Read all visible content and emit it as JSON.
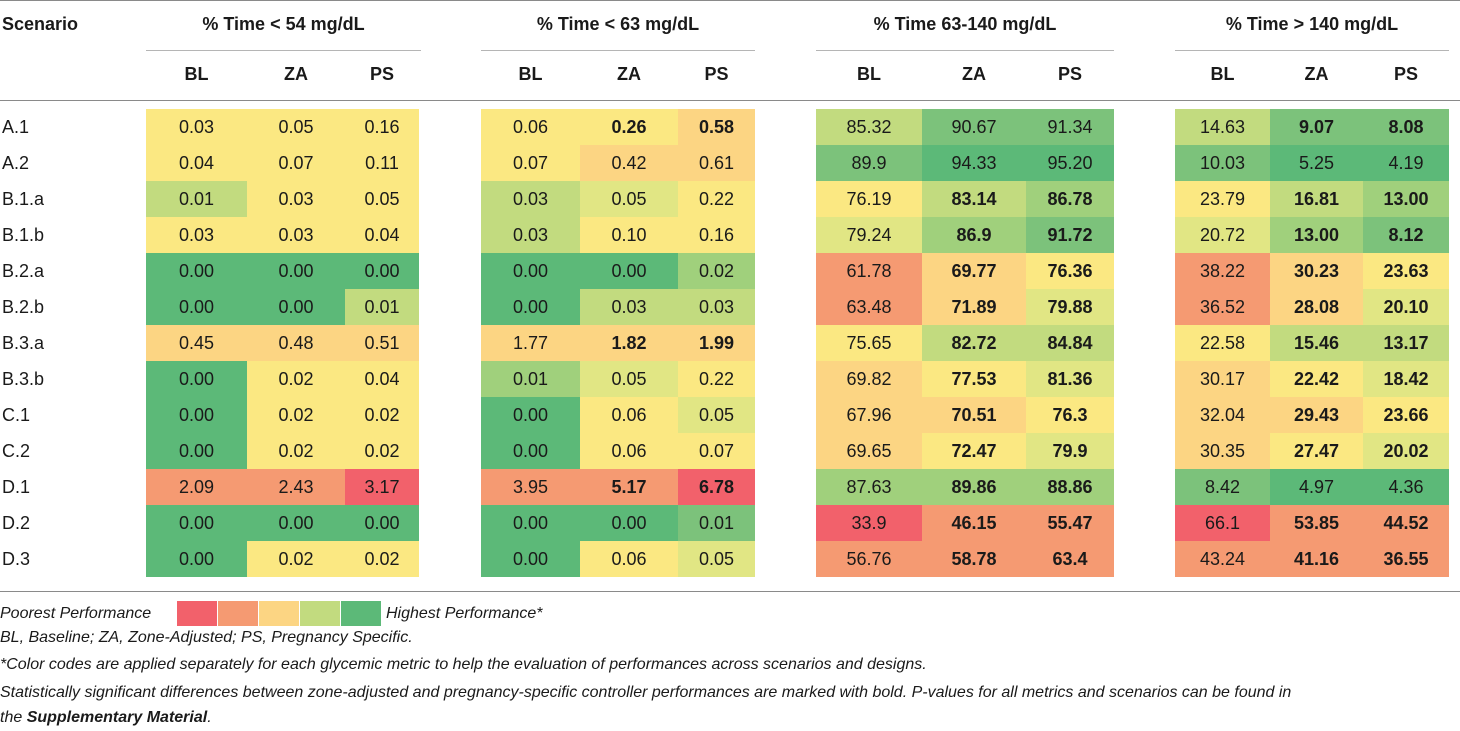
{
  "header": {
    "scenario_label": "Scenario",
    "groups": [
      {
        "title": "% Time < 54 mg/dL",
        "subs": [
          "BL",
          "ZA",
          "PS"
        ]
      },
      {
        "title": "% Time < 63 mg/dL",
        "subs": [
          "BL",
          "ZA",
          "PS"
        ]
      },
      {
        "title": "% Time 63-140 mg/dL",
        "subs": [
          "BL",
          "ZA",
          "PS"
        ]
      },
      {
        "title": "% Time > 140 mg/dL",
        "subs": [
          "BL",
          "ZA",
          "PS"
        ]
      }
    ]
  },
  "colors": {
    "c1": "#f2616b",
    "c2": "#f59a72",
    "c3": "#fcd583",
    "c4": "#fbe882",
    "c5": "#e1e684",
    "c6": "#c2db7f",
    "c7": "#a0d07c",
    "c8": "#7cc27b",
    "c9": "#5cb978"
  },
  "rows": [
    {
      "label": "A.1",
      "cells": [
        {
          "v": "0.03",
          "c": "c4"
        },
        {
          "v": "0.05",
          "c": "c4"
        },
        {
          "v": "0.16",
          "c": "c4"
        },
        {
          "v": "0.06",
          "c": "c4"
        },
        {
          "v": "0.26",
          "c": "c4",
          "b": true
        },
        {
          "v": "0.58",
          "c": "c3",
          "b": true
        },
        {
          "v": "85.32",
          "c": "c6"
        },
        {
          "v": "90.67",
          "c": "c8"
        },
        {
          "v": "91.34",
          "c": "c8"
        },
        {
          "v": "14.63",
          "c": "c6"
        },
        {
          "v": "9.07",
          "c": "c8",
          "b": true
        },
        {
          "v": "8.08",
          "c": "c8",
          "b": true
        }
      ]
    },
    {
      "label": "A.2",
      "cells": [
        {
          "v": "0.04",
          "c": "c4"
        },
        {
          "v": "0.07",
          "c": "c4"
        },
        {
          "v": "0.11",
          "c": "c4"
        },
        {
          "v": "0.07",
          "c": "c4"
        },
        {
          "v": "0.42",
          "c": "c3"
        },
        {
          "v": "0.61",
          "c": "c3"
        },
        {
          "v": "89.9",
          "c": "c8"
        },
        {
          "v": "94.33",
          "c": "c9"
        },
        {
          "v": "95.20",
          "c": "c9"
        },
        {
          "v": "10.03",
          "c": "c8"
        },
        {
          "v": "5.25",
          "c": "c9"
        },
        {
          "v": "4.19",
          "c": "c9"
        }
      ]
    },
    {
      "label": "B.1.a",
      "cells": [
        {
          "v": "0.01",
          "c": "c6"
        },
        {
          "v": "0.03",
          "c": "c4"
        },
        {
          "v": "0.05",
          "c": "c4"
        },
        {
          "v": "0.03",
          "c": "c6"
        },
        {
          "v": "0.05",
          "c": "c5"
        },
        {
          "v": "0.22",
          "c": "c4"
        },
        {
          "v": "76.19",
          "c": "c4"
        },
        {
          "v": "83.14",
          "c": "c6",
          "b": true
        },
        {
          "v": "86.78",
          "c": "c7",
          "b": true
        },
        {
          "v": "23.79",
          "c": "c4"
        },
        {
          "v": "16.81",
          "c": "c6",
          "b": true
        },
        {
          "v": "13.00",
          "c": "c7",
          "b": true
        }
      ]
    },
    {
      "label": "B.1.b",
      "cells": [
        {
          "v": "0.03",
          "c": "c4"
        },
        {
          "v": "0.03",
          "c": "c4"
        },
        {
          "v": "0.04",
          "c": "c4"
        },
        {
          "v": "0.03",
          "c": "c6"
        },
        {
          "v": "0.10",
          "c": "c4"
        },
        {
          "v": "0.16",
          "c": "c4"
        },
        {
          "v": "79.24",
          "c": "c5"
        },
        {
          "v": "86.9",
          "c": "c7",
          "b": true
        },
        {
          "v": "91.72",
          "c": "c8",
          "b": true
        },
        {
          "v": "20.72",
          "c": "c5"
        },
        {
          "v": "13.00",
          "c": "c7",
          "b": true
        },
        {
          "v": "8.12",
          "c": "c8",
          "b": true
        }
      ]
    },
    {
      "label": "B.2.a",
      "cells": [
        {
          "v": "0.00",
          "c": "c9"
        },
        {
          "v": "0.00",
          "c": "c9"
        },
        {
          "v": "0.00",
          "c": "c9"
        },
        {
          "v": "0.00",
          "c": "c9"
        },
        {
          "v": "0.00",
          "c": "c9"
        },
        {
          "v": "0.02",
          "c": "c7"
        },
        {
          "v": "61.78",
          "c": "c2"
        },
        {
          "v": "69.77",
          "c": "c3",
          "b": true
        },
        {
          "v": "76.36",
          "c": "c4",
          "b": true
        },
        {
          "v": "38.22",
          "c": "c2"
        },
        {
          "v": "30.23",
          "c": "c3",
          "b": true
        },
        {
          "v": "23.63",
          "c": "c4",
          "b": true
        }
      ]
    },
    {
      "label": "B.2.b",
      "cells": [
        {
          "v": "0.00",
          "c": "c9"
        },
        {
          "v": "0.00",
          "c": "c9"
        },
        {
          "v": "0.01",
          "c": "c6"
        },
        {
          "v": "0.00",
          "c": "c9"
        },
        {
          "v": "0.03",
          "c": "c6"
        },
        {
          "v": "0.03",
          "c": "c6"
        },
        {
          "v": "63.48",
          "c": "c2"
        },
        {
          "v": "71.89",
          "c": "c3",
          "b": true
        },
        {
          "v": "79.88",
          "c": "c5",
          "b": true
        },
        {
          "v": "36.52",
          "c": "c2"
        },
        {
          "v": "28.08",
          "c": "c3",
          "b": true
        },
        {
          "v": "20.10",
          "c": "c5",
          "b": true
        }
      ]
    },
    {
      "label": "B.3.a",
      "cells": [
        {
          "v": "0.45",
          "c": "c3"
        },
        {
          "v": "0.48",
          "c": "c3"
        },
        {
          "v": "0.51",
          "c": "c3"
        },
        {
          "v": "1.77",
          "c": "c3"
        },
        {
          "v": "1.82",
          "c": "c3",
          "b": true
        },
        {
          "v": "1.99",
          "c": "c3",
          "b": true
        },
        {
          "v": "75.65",
          "c": "c4"
        },
        {
          "v": "82.72",
          "c": "c6",
          "b": true
        },
        {
          "v": "84.84",
          "c": "c6",
          "b": true
        },
        {
          "v": "22.58",
          "c": "c4"
        },
        {
          "v": "15.46",
          "c": "c6",
          "b": true
        },
        {
          "v": "13.17",
          "c": "c6",
          "b": true
        }
      ]
    },
    {
      "label": "B.3.b",
      "cells": [
        {
          "v": "0.00",
          "c": "c9"
        },
        {
          "v": "0.02",
          "c": "c4"
        },
        {
          "v": "0.04",
          "c": "c4"
        },
        {
          "v": "0.01",
          "c": "c7"
        },
        {
          "v": "0.05",
          "c": "c5"
        },
        {
          "v": "0.22",
          "c": "c4"
        },
        {
          "v": "69.82",
          "c": "c3"
        },
        {
          "v": "77.53",
          "c": "c4",
          "b": true
        },
        {
          "v": "81.36",
          "c": "c5",
          "b": true
        },
        {
          "v": "30.17",
          "c": "c3"
        },
        {
          "v": "22.42",
          "c": "c4",
          "b": true
        },
        {
          "v": "18.42",
          "c": "c5",
          "b": true
        }
      ]
    },
    {
      "label": "C.1",
      "cells": [
        {
          "v": "0.00",
          "c": "c9"
        },
        {
          "v": "0.02",
          "c": "c4"
        },
        {
          "v": "0.02",
          "c": "c4"
        },
        {
          "v": "0.00",
          "c": "c9"
        },
        {
          "v": "0.06",
          "c": "c4"
        },
        {
          "v": "0.05",
          "c": "c5"
        },
        {
          "v": "67.96",
          "c": "c3"
        },
        {
          "v": "70.51",
          "c": "c3",
          "b": true
        },
        {
          "v": "76.3",
          "c": "c4",
          "b": true
        },
        {
          "v": "32.04",
          "c": "c3"
        },
        {
          "v": "29.43",
          "c": "c3",
          "b": true
        },
        {
          "v": "23.66",
          "c": "c4",
          "b": true
        }
      ]
    },
    {
      "label": "C.2",
      "cells": [
        {
          "v": "0.00",
          "c": "c9"
        },
        {
          "v": "0.02",
          "c": "c4"
        },
        {
          "v": "0.02",
          "c": "c4"
        },
        {
          "v": "0.00",
          "c": "c9"
        },
        {
          "v": "0.06",
          "c": "c4"
        },
        {
          "v": "0.07",
          "c": "c4"
        },
        {
          "v": "69.65",
          "c": "c3"
        },
        {
          "v": "72.47",
          "c": "c4",
          "b": true
        },
        {
          "v": "79.9",
          "c": "c5",
          "b": true
        },
        {
          "v": "30.35",
          "c": "c3"
        },
        {
          "v": "27.47",
          "c": "c4",
          "b": true
        },
        {
          "v": "20.02",
          "c": "c5",
          "b": true
        }
      ]
    },
    {
      "label": "D.1",
      "cells": [
        {
          "v": "2.09",
          "c": "c2"
        },
        {
          "v": "2.43",
          "c": "c2"
        },
        {
          "v": "3.17",
          "c": "c1"
        },
        {
          "v": "3.95",
          "c": "c2"
        },
        {
          "v": "5.17",
          "c": "c2",
          "b": true
        },
        {
          "v": "6.78",
          "c": "c1",
          "b": true
        },
        {
          "v": "87.63",
          "c": "c7"
        },
        {
          "v": "89.86",
          "c": "c7",
          "b": true
        },
        {
          "v": "88.86",
          "c": "c7",
          "b": true
        },
        {
          "v": "8.42",
          "c": "c8"
        },
        {
          "v": "4.97",
          "c": "c9"
        },
        {
          "v": "4.36",
          "c": "c9"
        }
      ]
    },
    {
      "label": "D.2",
      "cells": [
        {
          "v": "0.00",
          "c": "c9"
        },
        {
          "v": "0.00",
          "c": "c9"
        },
        {
          "v": "0.00",
          "c": "c9"
        },
        {
          "v": "0.00",
          "c": "c9"
        },
        {
          "v": "0.00",
          "c": "c9"
        },
        {
          "v": "0.01",
          "c": "c8"
        },
        {
          "v": "33.9",
          "c": "c1"
        },
        {
          "v": "46.15",
          "c": "c2",
          "b": true
        },
        {
          "v": "55.47",
          "c": "c2",
          "b": true
        },
        {
          "v": "66.1",
          "c": "c1"
        },
        {
          "v": "53.85",
          "c": "c2",
          "b": true
        },
        {
          "v": "44.52",
          "c": "c2",
          "b": true
        }
      ]
    },
    {
      "label": "D.3",
      "cells": [
        {
          "v": "0.00",
          "c": "c9"
        },
        {
          "v": "0.02",
          "c": "c4"
        },
        {
          "v": "0.02",
          "c": "c4"
        },
        {
          "v": "0.00",
          "c": "c9"
        },
        {
          "v": "0.06",
          "c": "c4"
        },
        {
          "v": "0.05",
          "c": "c5"
        },
        {
          "v": "56.76",
          "c": "c2"
        },
        {
          "v": "58.78",
          "c": "c2",
          "b": true
        },
        {
          "v": "63.4",
          "c": "c2",
          "b": true
        },
        {
          "v": "43.24",
          "c": "c2"
        },
        {
          "v": "41.16",
          "c": "c2",
          "b": true
        },
        {
          "v": "36.55",
          "c": "c2",
          "b": true
        }
      ]
    }
  ],
  "legend": {
    "poorest_label": "Poorest Performance",
    "highest_label": "Highest Performance*",
    "swatches": [
      "#f2616b",
      "#f59a72",
      "#fcd583",
      "#c2db7f",
      "#5cb978"
    ]
  },
  "notes": {
    "abbrev": "BL, Baseline; ZA, Zone-Adjusted; PS, Pregnancy Specific.",
    "color_codes": "*Color codes are applied separately for each glycemic metric to help the evaluation of performances across scenarios and designs.",
    "significance_line1": "Statistically significant differences between zone-adjusted and pregnancy-specific controller performances are marked with bold. P-values for all metrics and scenarios can be found in",
    "significance_line2_prefix": "the ",
    "significance_link": "Supplementary Material",
    "significance_line2_suffix": "."
  }
}
